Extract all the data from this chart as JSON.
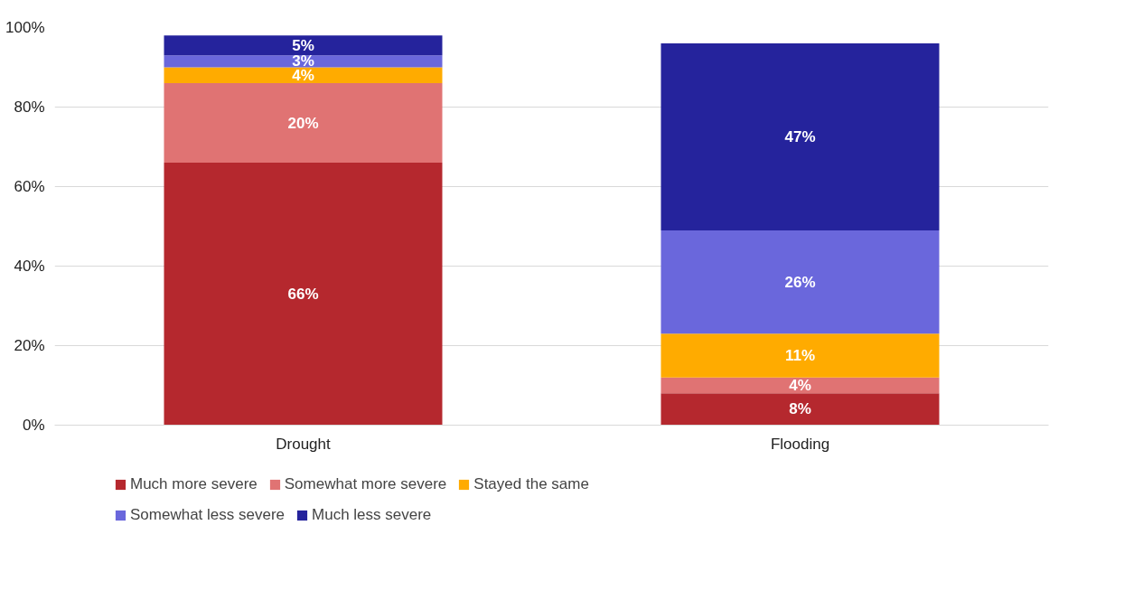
{
  "chart_data": {
    "type": "bar",
    "stacked": true,
    "categories": [
      "Drought",
      "Flooding"
    ],
    "series": [
      {
        "name": "Much more severe",
        "color": "#b5282e",
        "values": [
          66,
          8
        ],
        "value_labels": [
          "66%",
          "8%"
        ]
      },
      {
        "name": "Somewhat more severe",
        "color": "#e07373",
        "values": [
          20,
          4
        ],
        "value_labels": [
          "20%",
          "4%"
        ]
      },
      {
        "name": "Stayed the same",
        "color": "#ffab00",
        "values": [
          4,
          11
        ],
        "value_labels": [
          "4%",
          "11%"
        ]
      },
      {
        "name": "Somewhat less severe",
        "color": "#6a67dc",
        "values": [
          3,
          26
        ],
        "value_labels": [
          "3%",
          "26%"
        ]
      },
      {
        "name": "Much less severe",
        "color": "#25239c",
        "values": [
          5,
          47
        ],
        "value_labels": [
          "5%",
          "47%"
        ]
      }
    ],
    "ylim": [
      0,
      100
    ],
    "yticks": [
      {
        "value": 0,
        "label": "0%"
      },
      {
        "value": 20,
        "label": "20%"
      },
      {
        "value": 40,
        "label": "40%"
      },
      {
        "value": 60,
        "label": "60%"
      },
      {
        "value": 80,
        "label": "80%"
      },
      {
        "value": 100,
        "label": "100%"
      }
    ],
    "grid": "y",
    "legend": "bottom"
  }
}
